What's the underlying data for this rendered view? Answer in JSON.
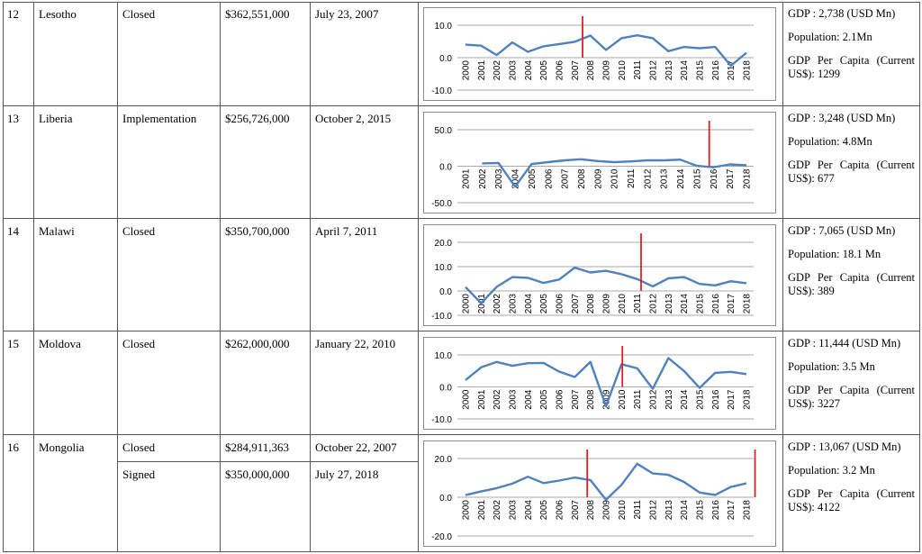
{
  "rows": [
    {
      "no": "12",
      "country": "Lesotho",
      "agreements": [
        {
          "status": "Closed",
          "amount": "$362,551,000",
          "date": "July 23, 2007"
        }
      ],
      "chart": {
        "type": "line",
        "x": [
          2000,
          2001,
          2002,
          2003,
          2004,
          2005,
          2006,
          2007,
          2008,
          2009,
          2010,
          2011,
          2012,
          2013,
          2014,
          2015,
          2016,
          2017,
          2018
        ],
        "xlim": [
          2000,
          2018
        ],
        "ylim": [
          -10,
          10
        ],
        "yticks": [
          {
            "value": 10,
            "label": "10.0"
          },
          {
            "value": 0,
            "label": "0.0"
          },
          {
            "value": -10,
            "label": "-10.0"
          }
        ],
        "series": [
          {
            "color": "#4f81bd",
            "values": [
              4.0,
              3.7,
              0.8,
              4.7,
              1.8,
              3.5,
              4.2,
              4.9,
              6.8,
              2.4,
              6.0,
              6.9,
              6.0,
              2.0,
              3.3,
              2.9,
              3.3,
              -2.5,
              1.5
            ]
          }
        ],
        "highlight_color": "#e02020",
        "highlight_x": [
          2007.5
        ]
      },
      "info": [
        "GDP : 2,738 (USD Mn)",
        "Population: 2.1Mn",
        "GDP Per Capita (Current US$): 1299"
      ]
    },
    {
      "no": "13",
      "country": "Liberia",
      "agreements": [
        {
          "status": "Implementation",
          "amount": "$256,726,000",
          "date": "October 2, 2015"
        }
      ],
      "chart": {
        "type": "line",
        "x": [
          2001,
          2002,
          2003,
          2004,
          2005,
          2006,
          2007,
          2008,
          2009,
          2010,
          2011,
          2012,
          2013,
          2014,
          2015,
          2016,
          2017,
          2018
        ],
        "xlim": [
          2001,
          2018
        ],
        "ylim": [
          -50,
          50
        ],
        "yticks": [
          {
            "value": 50,
            "label": "50.0"
          },
          {
            "value": 0,
            "label": "0.0"
          },
          {
            "value": -50,
            "label": "-50.0"
          }
        ],
        "series": [
          {
            "color": "#4f81bd",
            "values": [
              null,
              3.8,
              4.5,
              -28,
              3,
              5.5,
              8,
              9.5,
              7,
              5.5,
              6.5,
              8,
              8,
              9,
              0.5,
              -1.5,
              2.5,
              1.2
            ]
          }
        ],
        "highlight_color": "#e02020",
        "highlight_x": [
          2015.75
        ]
      },
      "info": [
        "GDP : 3,248 (USD Mn)",
        "Population: 4.8Mn",
        "GDP Per Capita (Current US$): 677"
      ]
    },
    {
      "no": "14",
      "country": "Malawi",
      "agreements": [
        {
          "status": "Closed",
          "amount": "$350,700,000",
          "date": "April 7, 2011"
        }
      ],
      "chart": {
        "type": "line",
        "x": [
          2000,
          2001,
          2002,
          2003,
          2004,
          2005,
          2006,
          2007,
          2008,
          2009,
          2010,
          2011,
          2012,
          2013,
          2014,
          2015,
          2016,
          2017,
          2018
        ],
        "xlim": [
          2000,
          2018
        ],
        "ylim": [
          -10,
          20
        ],
        "yticks": [
          {
            "value": 20,
            "label": "20.0"
          },
          {
            "value": 10,
            "label": "10.0"
          },
          {
            "value": 0,
            "label": "0.0"
          },
          {
            "value": -10,
            "label": "-10.0"
          }
        ],
        "series": [
          {
            "color": "#4f81bd",
            "values": [
              1.6,
              -5,
              1.7,
              5.7,
              5.4,
              3.3,
              4.7,
              9.6,
              7.6,
              8.3,
              6.9,
              4.9,
              1.9,
              5.2,
              5.7,
              2.9,
              2.3,
              4.0,
              3.2
            ]
          }
        ],
        "highlight_color": "#e02020",
        "highlight_x": [
          2011.25
        ]
      },
      "info": [
        "GDP : 7,065 (USD Mn)",
        "Population: 18.1 Mn",
        "GDP Per Capita (Current US$): 389"
      ]
    },
    {
      "no": "15",
      "country": "Moldova",
      "agreements": [
        {
          "status": "Closed",
          "amount": "$262,000,000",
          "date": "January 22, 2010"
        }
      ],
      "chart": {
        "type": "line",
        "x": [
          2000,
          2001,
          2002,
          2003,
          2004,
          2005,
          2006,
          2007,
          2008,
          2009,
          2010,
          2011,
          2012,
          2013,
          2014,
          2015,
          2016,
          2017,
          2018
        ],
        "xlim": [
          2000,
          2018
        ],
        "ylim": [
          -10,
          10
        ],
        "yticks": [
          {
            "value": 10,
            "label": "10.0"
          },
          {
            "value": 0,
            "label": "0.0"
          },
          {
            "value": -10,
            "label": "-10.0"
          }
        ],
        "series": [
          {
            "color": "#4f81bd",
            "values": [
              2.1,
              6.1,
              7.8,
              6.6,
              7.4,
              7.5,
              4.8,
              3.1,
              7.8,
              -6.0,
              7.1,
              5.8,
              -0.6,
              9.0,
              5.0,
              -0.3,
              4.4,
              4.7,
              4.0
            ]
          }
        ],
        "highlight_color": "#e02020",
        "highlight_x": [
          2010.05
        ]
      },
      "info": [
        "GDP : 11,444 (USD Mn)",
        "Population: 3.5 Mn",
        "GDP Per Capita (Current US$): 3227"
      ]
    },
    {
      "no": "16",
      "country": "Mongolia",
      "agreements": [
        {
          "status": "Closed",
          "amount": "$284,911,363",
          "date": "October 22, 2007"
        },
        {
          "status": "Signed",
          "amount": "$350,000,000",
          "date": "July 27, 2018"
        }
      ],
      "chart": {
        "type": "line",
        "x": [
          2000,
          2001,
          2002,
          2003,
          2004,
          2005,
          2006,
          2007,
          2008,
          2009,
          2010,
          2011,
          2012,
          2013,
          2014,
          2015,
          2016,
          2017,
          2018
        ],
        "xlim": [
          2000,
          2018
        ],
        "ylim": [
          -20,
          20
        ],
        "yticks": [
          {
            "value": 20,
            "label": "20.0"
          },
          {
            "value": 0,
            "label": "0.0"
          },
          {
            "value": -20,
            "label": "-20.0"
          }
        ],
        "series": [
          {
            "color": "#4f81bd",
            "values": [
              1.1,
              3.0,
              4.7,
              7.0,
              10.6,
              7.3,
              8.6,
              10.2,
              8.9,
              -1.3,
              6.4,
              17.3,
              12.3,
              11.6,
              7.9,
              2.4,
              1.2,
              5.3,
              7.2
            ]
          }
        ],
        "highlight_color": "#e02020",
        "highlight_x": [
          2007.8,
          2018.55
        ]
      },
      "info": [
        "GDP : 13,067 (USD Mn)",
        "Population: 3.2 Mn",
        "GDP Per Capita (Current US$): 4122"
      ]
    }
  ]
}
